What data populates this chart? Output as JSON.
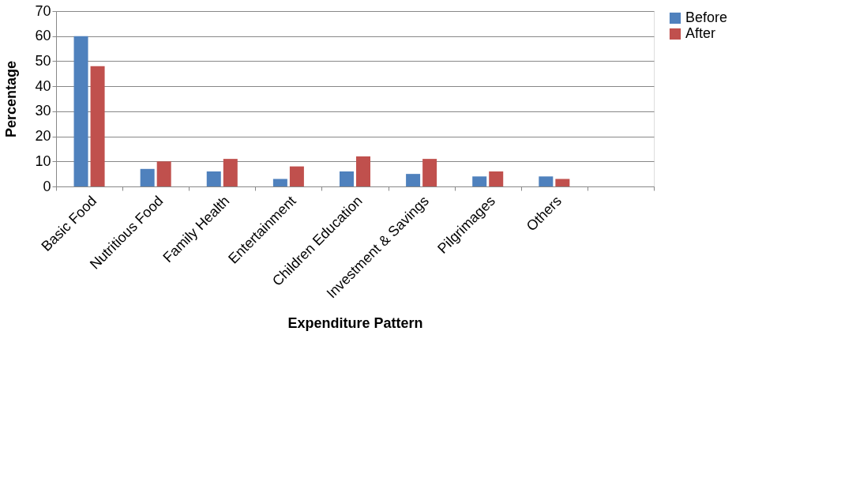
{
  "chart_data": {
    "type": "bar",
    "xlabel": "Expenditure Pattern",
    "ylabel": "Percentage",
    "categories": [
      "Basic Food",
      "Nutritious Food",
      "Family Health",
      "Entertainment",
      "Children Education",
      "Investment & Savings",
      "Pilgrimages",
      "Others",
      null
    ],
    "series": [
      {
        "name": "Before",
        "color": "#4f81bd",
        "values": [
          60,
          7,
          6,
          3,
          6,
          5,
          4,
          4,
          null
        ]
      },
      {
        "name": "After",
        "color": "#c0504d",
        "values": [
          48,
          10,
          11,
          8,
          12,
          11,
          6,
          3,
          null
        ]
      }
    ],
    "ylim": [
      0,
      70
    ],
    "yticks": [
      0,
      10,
      20,
      30,
      40,
      50,
      60,
      70
    ],
    "grid": "y",
    "legend": "right"
  }
}
